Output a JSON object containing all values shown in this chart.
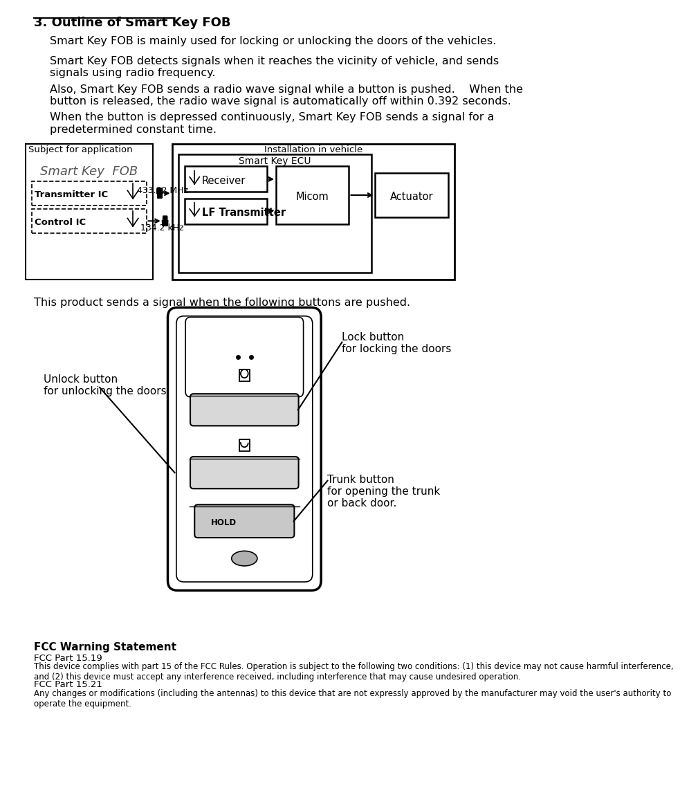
{
  "title": "3. Outline of Smart Key FOB",
  "para1": "Smart Key FOB is mainly used for locking or unlocking the doors of the vehicles.",
  "para2": "Smart Key FOB detects signals when it reaches the vicinity of vehicle, and sends\nsignals using radio frequency.",
  "para3": "Also, Smart Key FOB sends a radio wave signal while a button is pushed.    When the\nbutton is released, the radio wave signal is automatically off within 0.392 seconds.",
  "para4": "When the button is depressed continuously, Smart Key FOB sends a signal for a\npredetermined constant time.",
  "diagram_label_subject": "Subject for application",
  "diagram_label_install": "Installation in vehicle",
  "diagram_smart_key_fob": "Smart Key  FOB",
  "diagram_transmitter_ic": "Transmitter IC",
  "diagram_control_ic": "Control IC",
  "diagram_freq_high": "433.92 MHz",
  "diagram_freq_low": "134.2 kHz",
  "diagram_smart_key_ecu": "Smart Key ECU",
  "diagram_receiver": "Receiver",
  "diagram_micom": "Micom",
  "diagram_actuator": "Actuator",
  "diagram_lf_transmitter": "LF Transmitter",
  "para5": "This product sends a signal when the following buttons are pushed.",
  "lock_label1": "Lock button",
  "lock_label2": "for locking the doors",
  "unlock_label1": "Unlock button",
  "unlock_label2": "for unlocking the doors.",
  "trunk_label1": "Trunk button",
  "trunk_label2": "for opening the trunk",
  "trunk_label3": "or back door.",
  "fcc_title": "FCC Warning Statement",
  "fcc_part1_label": "FCC Part 15.19",
  "fcc_part1_text": "This device complies with part 15 of the FCC Rules. Operation is subject to the following two conditions: (1) this device may not cause harmful interference,\nand (2) this device must accept any interference received, including interference that may cause undesired operation.",
  "fcc_part2_label": "FCC Part 15.21",
  "fcc_part2_text": "Any changes or modifications (including the antennas) to this device that are not expressly approved by the manufacturer may void the user's authority to\noperate the equipment.",
  "bg_color": "#ffffff",
  "text_color": "#000000"
}
